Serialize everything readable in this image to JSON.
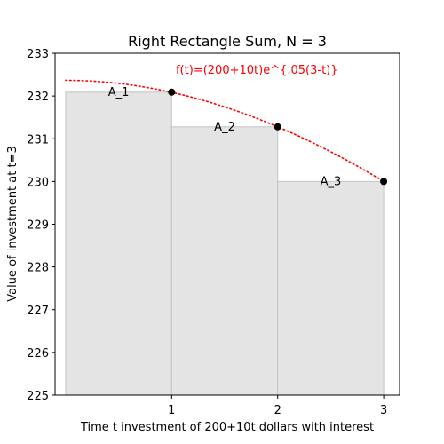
{
  "chart_data": {
    "type": "bar",
    "title": "Right Rectangle Sum, N = 3",
    "xlabel": "Time t investment of 200+10t dollars with interest",
    "ylabel": "Value of investment at t=3",
    "xlim": [
      -0.1,
      3.15
    ],
    "ylim": [
      225,
      233
    ],
    "x_ticks": [
      1,
      2,
      3
    ],
    "x_tick_labels": [
      "1",
      "2",
      "3"
    ],
    "y_ticks": [
      225,
      226,
      227,
      228,
      229,
      230,
      231,
      232,
      233
    ],
    "y_tick_labels": [
      "225",
      "226",
      "227",
      "228",
      "229",
      "230",
      "231",
      "232",
      "233"
    ],
    "grid": false,
    "rectangles": [
      {
        "label": "A_1",
        "x0": 0,
        "x1": 1,
        "height": 232.09
      },
      {
        "label": "A_2",
        "x0": 1,
        "x1": 2,
        "height": 231.28
      },
      {
        "label": "A_3",
        "x0": 2,
        "x1": 3,
        "height": 230.0
      }
    ],
    "rectangle_color": "#e4e4e4",
    "rectangle_edge_color": "#c4c4c4",
    "curve": {
      "label": "f(t)=(200+10t)e^{.05(3-t)}",
      "color": "#ff0000",
      "style": "dotted",
      "x_range": [
        0,
        3
      ]
    },
    "points": [
      {
        "x": 1,
        "y": 232.09
      },
      {
        "x": 2,
        "y": 231.28
      },
      {
        "x": 3,
        "y": 230.0
      }
    ],
    "point_color": "#000000"
  }
}
